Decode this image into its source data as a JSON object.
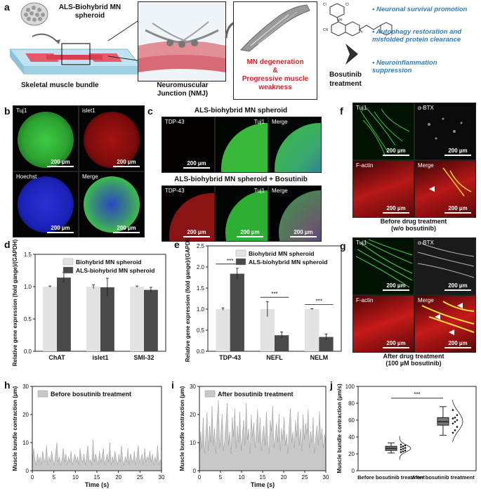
{
  "panels": {
    "a": "a",
    "b": "b",
    "c": "c",
    "d": "d",
    "e": "e",
    "f": "f",
    "g": "g",
    "h": "h",
    "i": "i",
    "j": "j"
  },
  "panel_a": {
    "spheroid_label": "ALS-Biohybrid MN spheroid",
    "muscle_label": "Skeletal muscle bundle",
    "nmj_label": "Neuromuscular Junction (NMJ)",
    "degeneration_line1": "MN degeneration",
    "degeneration_line2": "&",
    "degeneration_line3": "Progressive muscle weakness",
    "drug_label": "Bosutinib treatment",
    "bullets": [
      "Neuronal survival promotion",
      "Autophagy restoration and misfolded protein clearance",
      "Neuroinflammation suppression"
    ],
    "colors": {
      "bullet": "#2f7fc1",
      "degeneration": "#d0262e"
    }
  },
  "panel_b": {
    "tiles": [
      {
        "label": "Tuj1",
        "scale": "200 µm",
        "color": "#34c23a"
      },
      {
        "label": "islet1",
        "scale": "200 µm",
        "color": "#a41313"
      },
      {
        "label": "Hoechst",
        "scale": "200 µm",
        "color": "#1b22b8"
      },
      {
        "label": "Merge",
        "scale": "200 µm",
        "color": "#34a45a"
      }
    ]
  },
  "panel_c": {
    "title1": "ALS-biohybrid MN spheroid",
    "title2": "ALS-biohybrid MN spheroid + Bosutinib",
    "row1": [
      {
        "label": "TDP-43",
        "scale": "200 µm"
      },
      {
        "label": "Tuj1",
        "scale": ""
      },
      {
        "label": "Merge",
        "scale": ""
      }
    ],
    "row2": [
      {
        "label": "TDP-43",
        "scale": "200 µm"
      },
      {
        "label": "Tuj1",
        "scale": "200 µm"
      },
      {
        "label": "Merge",
        "scale": "200 µm"
      }
    ]
  },
  "panel_f": {
    "tiles": [
      {
        "label": "Tuj1",
        "scale": "200 µm"
      },
      {
        "label": "α-BTX",
        "scale": "200 µm"
      },
      {
        "label": "F-actin",
        "scale": "200 µm"
      },
      {
        "label": "Merge",
        "scale": "200 µm"
      }
    ],
    "caption_line1": "Before drug treatment",
    "caption_line2": "(w/o bosutinib)"
  },
  "panel_g": {
    "tiles": [
      {
        "label": "Tuj1",
        "scale": "200 µm"
      },
      {
        "label": "α-BTX",
        "scale": "200 µm"
      },
      {
        "label": "F-actin",
        "scale": "200 µm"
      },
      {
        "label": "Merge",
        "scale": "200 µm"
      }
    ],
    "caption_line1": "After drug treatment",
    "caption_line2": "(100 µM bosutinib)"
  },
  "chart_data": [
    {
      "id": "d",
      "type": "bar",
      "ylabel": "Relative gene expression (fold gange)/(GAPDH)",
      "categories": [
        "ChAT",
        "islet1",
        "SMI-32"
      ],
      "ylim": [
        0,
        1.5
      ],
      "yticks": [
        "0.0",
        "0.5",
        "1.0",
        "1.5"
      ],
      "series": [
        {
          "name": "Biohybrid MN spheroid",
          "color": "#e2e2e2",
          "values": [
            1.0,
            1.0,
            1.0
          ],
          "errors": [
            0.01,
            0.03,
            0.01
          ]
        },
        {
          "name": "ALS-biohybrid MN spheroid",
          "color": "#4a4a4a",
          "values": [
            1.14,
            0.99,
            0.95
          ],
          "errors": [
            0.08,
            0.14,
            0.04
          ]
        }
      ],
      "legend": "top-right"
    },
    {
      "id": "e",
      "type": "bar",
      "ylabel": "Relative gene expression (fold gange)/(GAPDH)",
      "categories": [
        "TDP-43",
        "NEFL",
        "NELM"
      ],
      "ylim": [
        0,
        2.5
      ],
      "yticks": [
        "0.0",
        "0.5",
        "1.0",
        "1.5",
        "2.0",
        "2.5"
      ],
      "series": [
        {
          "name": "Biohybrid MN spheroid",
          "color": "#e2e2e2",
          "values": [
            1.0,
            1.0,
            1.0
          ],
          "errors": [
            0.03,
            0.18,
            0.01
          ]
        },
        {
          "name": "ALS-biohybrid MN spheroid",
          "color": "#4a4a4a",
          "values": [
            1.84,
            0.38,
            0.34
          ],
          "errors": [
            0.13,
            0.08,
            0.07
          ]
        }
      ],
      "significance": [
        "***",
        "***",
        "***"
      ],
      "legend": "top-right"
    },
    {
      "id": "h",
      "type": "area",
      "legend_label": "Before bosutinib treatment",
      "xlabel": "Time (s)",
      "ylabel": "Muscle bundle contraction (µm)",
      "xlim": [
        0,
        30
      ],
      "ylim": [
        0,
        30
      ],
      "xticks": [
        "0",
        "5",
        "10",
        "15",
        "20",
        "25",
        "30"
      ],
      "yticks": [
        "0",
        "10",
        "20",
        "30"
      ],
      "x": [
        0,
        0.3,
        0.6,
        0.9,
        1.2,
        1.5,
        1.8,
        2.1,
        2.4,
        2.7,
        3.0,
        3.3,
        3.6,
        3.9,
        4.2,
        4.5,
        4.8,
        5.1,
        5.4,
        5.7,
        6.0,
        6.3,
        6.6,
        6.9,
        7.2,
        7.5,
        7.8,
        8.1,
        8.4,
        8.7,
        9.0,
        9.3,
        9.6,
        9.9,
        10.2,
        10.5,
        10.8,
        11.1,
        11.4,
        11.7,
        12.0,
        12.3,
        12.6,
        12.9,
        13.2,
        13.5,
        13.8,
        14.1,
        14.4,
        14.7,
        15.0,
        15.3,
        15.6,
        15.9,
        16.2,
        16.5,
        16.8,
        17.1,
        17.4,
        17.7,
        18.0,
        18.3,
        18.6,
        18.9,
        19.2,
        19.5,
        19.8,
        20.1,
        20.4,
        20.7,
        21.0,
        21.3,
        21.6,
        21.9,
        22.2,
        22.5,
        22.8,
        23.1,
        23.4,
        23.7,
        24.0,
        24.3,
        24.6,
        24.9,
        25.2,
        25.5,
        25.8,
        26.1,
        26.4,
        26.7,
        27.0,
        27.3,
        27.6,
        27.9,
        28.2,
        28.5,
        28.8,
        29.1,
        29.4,
        29.7,
        30.0
      ],
      "y": [
        3,
        8,
        4,
        2,
        6,
        3,
        5,
        2,
        7,
        4,
        3,
        9,
        2,
        5,
        3,
        7,
        4,
        2,
        6,
        10,
        3,
        5,
        2,
        4,
        8,
        3,
        6,
        2,
        5,
        3,
        7,
        2,
        4,
        6,
        3,
        5,
        2,
        8,
        4,
        3,
        6,
        2,
        5,
        9,
        3,
        4,
        2,
        11,
        3,
        6,
        4,
        2,
        7,
        3,
        5,
        8,
        2,
        4,
        6,
        3,
        10,
        2,
        5,
        3,
        7,
        4,
        2,
        6,
        3,
        9,
        4,
        2,
        5,
        3,
        8,
        2,
        6,
        4,
        3,
        7,
        2,
        5,
        9,
        3,
        4,
        6,
        2,
        8,
        3,
        5,
        4,
        7,
        3,
        6,
        2,
        5,
        3,
        9,
        2,
        4,
        3
      ]
    },
    {
      "id": "i",
      "type": "area",
      "legend_label": "After bosutinib treatment",
      "xlabel": "Time (s)",
      "ylabel": "Muscle bundle contraction (µm)",
      "xlim": [
        0,
        30
      ],
      "ylim": [
        0,
        30
      ],
      "xticks": [
        "0",
        "5",
        "10",
        "15",
        "20",
        "25",
        "30"
      ],
      "yticks": [
        "0",
        "10",
        "20",
        "30"
      ],
      "x": [
        0,
        0.3,
        0.6,
        0.9,
        1.2,
        1.5,
        1.8,
        2.1,
        2.4,
        2.7,
        3.0,
        3.3,
        3.6,
        3.9,
        4.2,
        4.5,
        4.8,
        5.1,
        5.4,
        5.7,
        6.0,
        6.3,
        6.6,
        6.9,
        7.2,
        7.5,
        7.8,
        8.1,
        8.4,
        8.7,
        9.0,
        9.3,
        9.6,
        9.9,
        10.2,
        10.5,
        10.8,
        11.1,
        11.4,
        11.7,
        12.0,
        12.3,
        12.6,
        12.9,
        13.2,
        13.5,
        13.8,
        14.1,
        14.4,
        14.7,
        15.0,
        15.3,
        15.6,
        15.9,
        16.2,
        16.5,
        16.8,
        17.1,
        17.4,
        17.7,
        18.0,
        18.3,
        18.6,
        18.9,
        19.2,
        19.5,
        19.8,
        20.1,
        20.4,
        20.7,
        21.0,
        21.3,
        21.6,
        21.9,
        22.2,
        22.5,
        22.8,
        23.1,
        23.4,
        23.7,
        24.0,
        24.3,
        24.6,
        24.9,
        25.2,
        25.5,
        25.8,
        26.1,
        26.4,
        26.7,
        27.0,
        27.3,
        27.6,
        27.9,
        28.2,
        28.5,
        28.8,
        29.1,
        29.4,
        29.7,
        30.0
      ],
      "y": [
        5,
        14,
        8,
        19,
        6,
        12,
        21,
        7,
        16,
        10,
        23,
        9,
        15,
        6,
        18,
        25,
        8,
        13,
        20,
        7,
        11,
        17,
        24,
        9,
        14,
        6,
        19,
        12,
        22,
        8,
        16,
        10,
        21,
        7,
        13,
        18,
        9,
        24,
        11,
        15,
        6,
        20,
        12,
        17,
        8,
        14,
        22,
        10,
        19,
        7,
        13,
        16,
        9,
        21,
        11,
        6,
        18,
        14,
        23,
        8,
        12,
        17,
        10,
        20,
        7,
        15,
        11,
        19,
        9,
        13,
        6,
        16,
        22,
        10,
        14,
        8,
        18,
        12,
        21,
        9,
        15,
        7,
        20,
        11,
        17,
        13,
        22,
        8,
        14,
        10,
        19,
        6,
        12,
        16,
        9,
        21,
        11,
        15,
        8,
        13,
        10
      ]
    },
    {
      "id": "j",
      "type": "box",
      "ylabel": "Muscle bundle contraction (µm/s)",
      "categories": [
        "Before bosutinib treatment",
        "After bosutinib treatment"
      ],
      "ylim": [
        0,
        100
      ],
      "yticks": [
        "0",
        "20",
        "40",
        "60",
        "80",
        "100"
      ],
      "significance": "***",
      "boxes": [
        {
          "min": 21,
          "q1": 24,
          "median": 26.5,
          "q3": 29,
          "max": 33,
          "points": [
            22,
            23,
            24,
            25,
            26,
            27,
            28,
            29,
            30,
            31
          ]
        },
        {
          "min": 42,
          "q1": 54,
          "median": 58,
          "q3": 63,
          "max": 76,
          "points": [
            45,
            48,
            52,
            56,
            58,
            60,
            62,
            63,
            66,
            72
          ]
        }
      ]
    }
  ]
}
